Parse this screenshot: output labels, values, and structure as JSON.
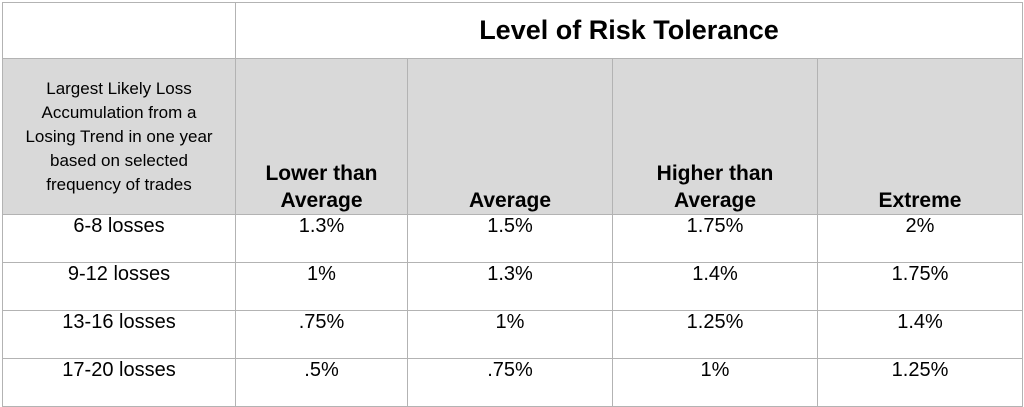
{
  "table": {
    "title": "Level of Risk Tolerance",
    "row_header_label": "Largest Likely Loss\nAccumulation from a\nLosing Trend in one year\nbased on selected\nfrequency of trades",
    "columns": [
      "Lower than\nAverage",
      "Average",
      "Higher than\nAverage",
      "Extreme"
    ],
    "rows": [
      {
        "label": "6-8 losses",
        "values": [
          "1.3%",
          "1.5%",
          "1.75%",
          "2%"
        ]
      },
      {
        "label": "9-12 losses",
        "values": [
          "1%",
          "1.3%",
          "1.4%",
          "1.75%"
        ]
      },
      {
        "label": "13-16 losses",
        "values": [
          ".75%",
          "1%",
          "1.25%",
          "1.4%"
        ]
      },
      {
        "label": "17-20 losses",
        "values": [
          ".5%",
          ".75%",
          "1%",
          "1.25%"
        ]
      }
    ]
  }
}
